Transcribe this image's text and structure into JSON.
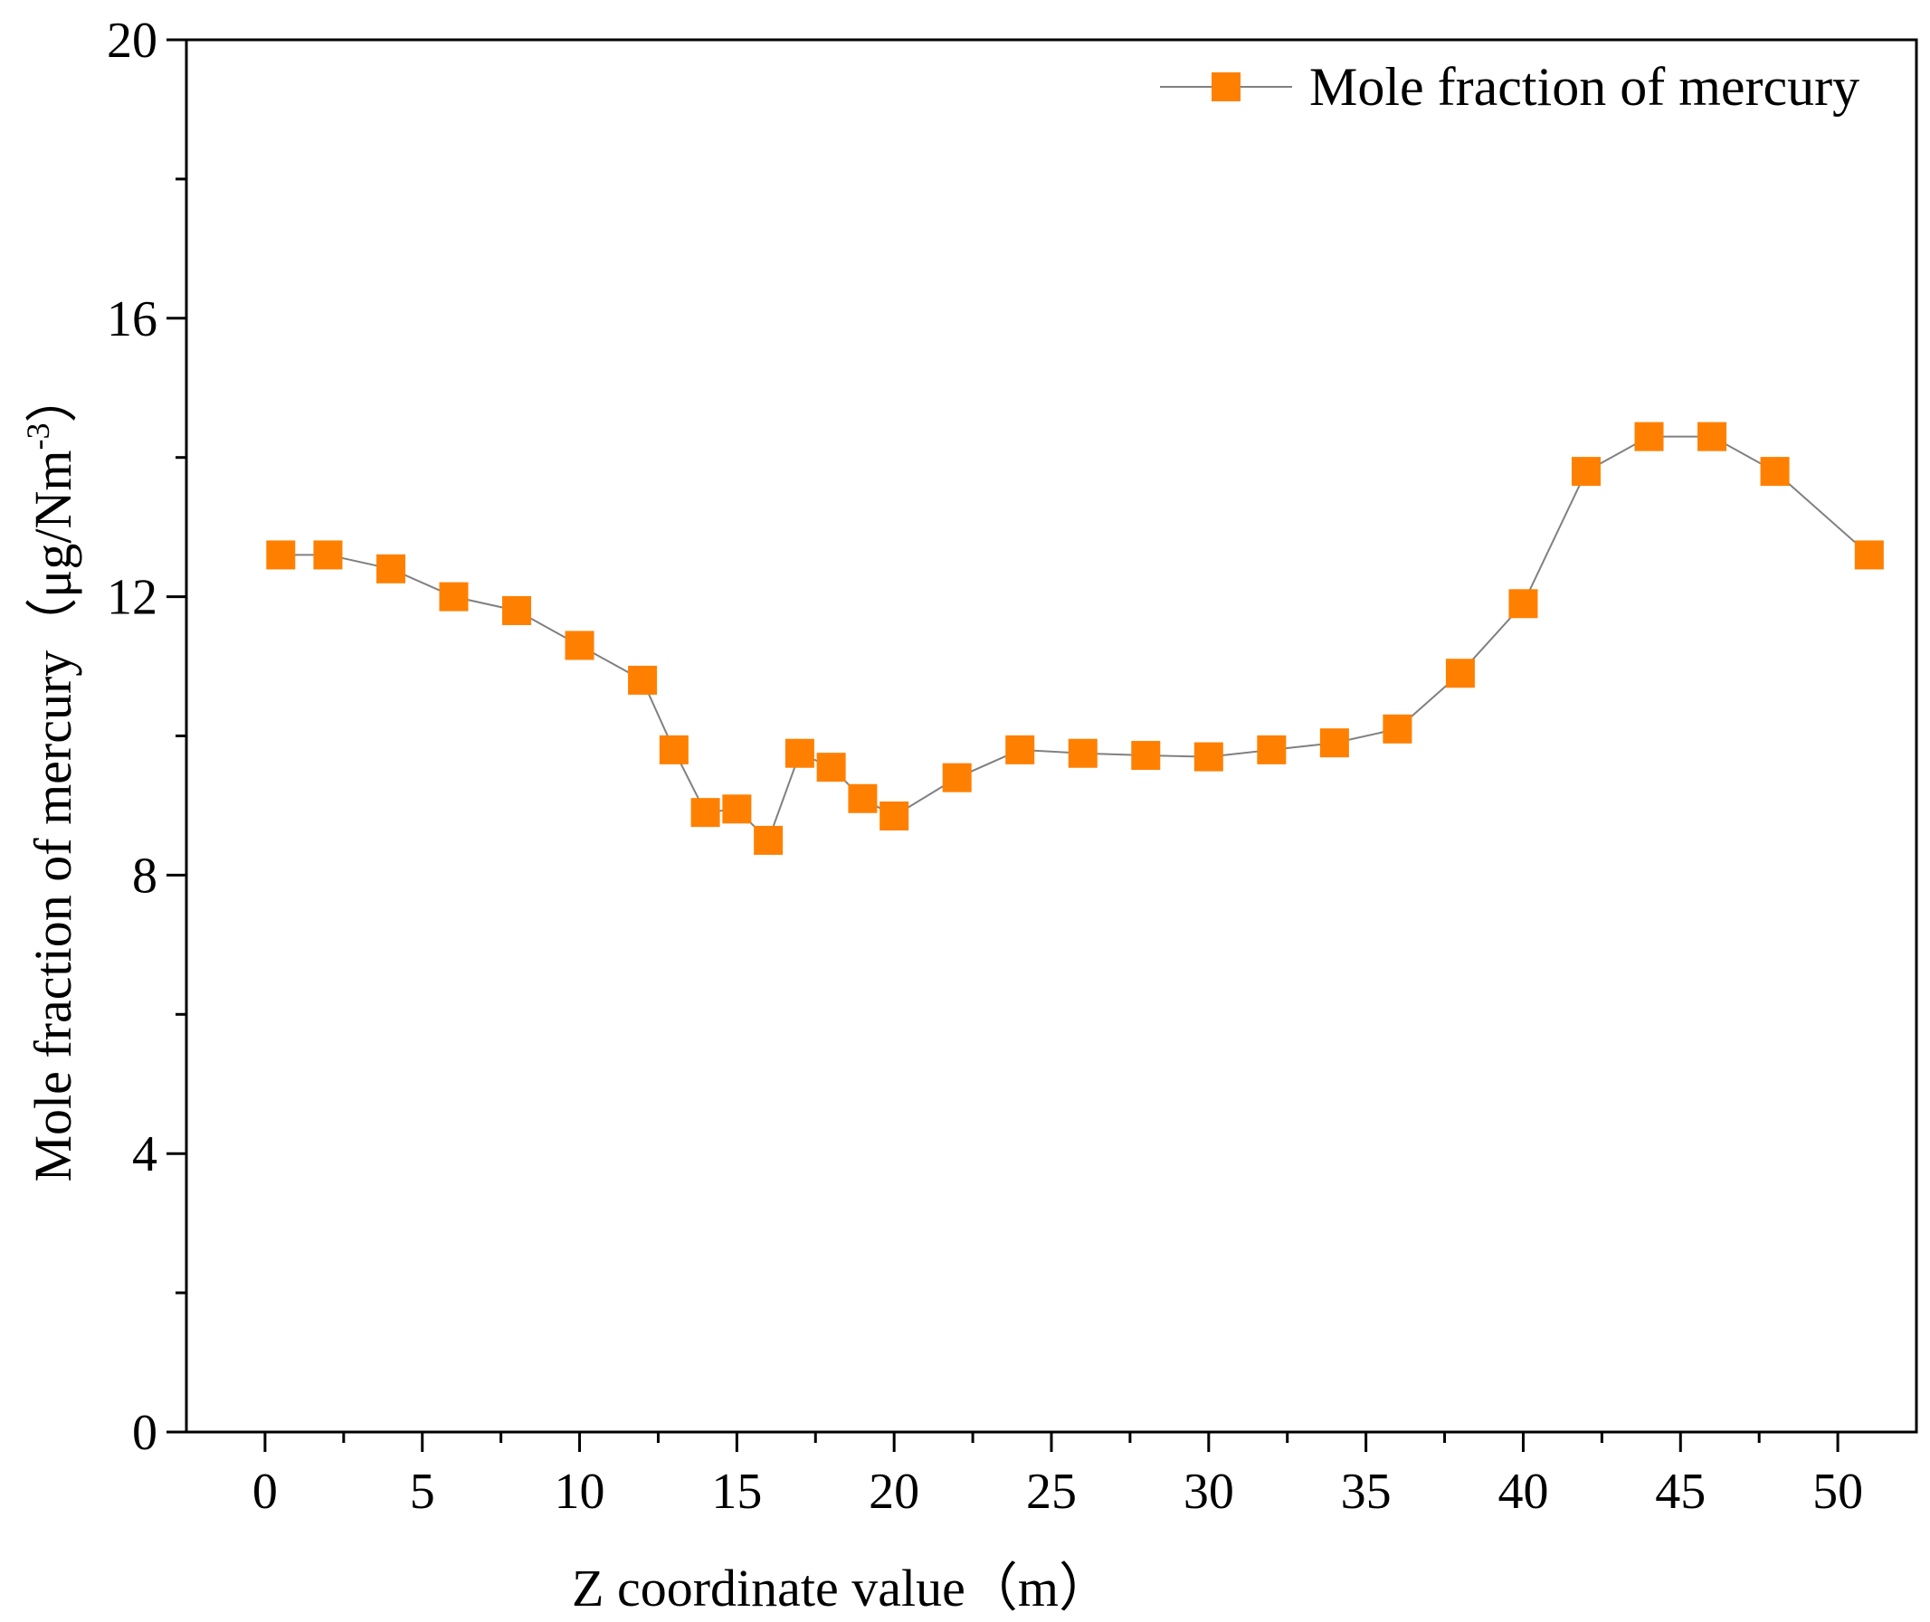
{
  "chart_data": {
    "type": "line",
    "xlabel": "Z coordinate value（m）",
    "ylabel": {
      "main": "Mole fraction of mercury（μg/Nm",
      "superscript": "-3",
      "close": "）"
    },
    "xlim": [
      -2.5,
      52.5
    ],
    "ylim": [
      0,
      20
    ],
    "xticks": [
      0,
      5,
      10,
      15,
      20,
      25,
      30,
      35,
      40,
      45,
      50
    ],
    "xtick_labels": [
      "0",
      "5",
      "10",
      "15",
      "20",
      "25",
      "30",
      "35",
      "40",
      "45",
      "50"
    ],
    "xminor": [
      2.5,
      7.5,
      12.5,
      17.5,
      22.5,
      27.5,
      32.5,
      37.5,
      42.5,
      47.5
    ],
    "yticks": [
      0,
      4,
      8,
      12,
      16,
      20
    ],
    "ytick_labels": [
      "0",
      "4",
      "8",
      "12",
      "16",
      "20"
    ],
    "yminor": [
      2,
      6,
      10,
      14,
      18
    ],
    "grid": false,
    "legend_position": "top-right",
    "series": [
      {
        "name": "Mole fraction of mercury",
        "color": "#ff8000",
        "line_color": "#808080",
        "marker": "square",
        "x": [
          0.5,
          2,
          4,
          6,
          8,
          10,
          12,
          13,
          14,
          15,
          16,
          17,
          18,
          19,
          20,
          22,
          24,
          26,
          28,
          30,
          32,
          34,
          36,
          38,
          40,
          42,
          44,
          46,
          48,
          51
        ],
        "y": [
          12.6,
          12.6,
          12.4,
          12.0,
          11.8,
          11.3,
          10.8,
          9.8,
          8.9,
          8.95,
          8.5,
          9.75,
          9.55,
          9.1,
          8.85,
          9.4,
          9.8,
          9.75,
          9.72,
          9.7,
          9.8,
          9.9,
          10.1,
          10.9,
          11.9,
          13.8,
          14.3,
          14.3,
          13.8,
          12.6
        ]
      }
    ]
  }
}
